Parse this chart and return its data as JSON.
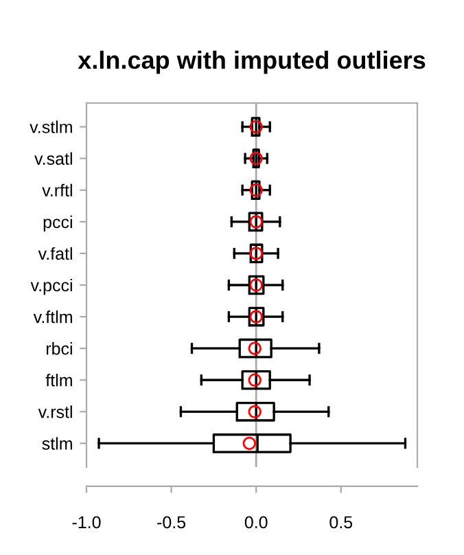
{
  "chart_data": {
    "type": "box",
    "orientation": "horizontal",
    "title": "x.ln.cap with imputed outliers",
    "categories": [
      "v.stlm",
      "v.satl",
      "v.rftl",
      "pcci",
      "v.fatl",
      "v.pcci",
      "v.ftlm",
      "rbci",
      "ftlm",
      "v.rstl",
      "stlm"
    ],
    "boxes": [
      {
        "low": -0.081,
        "q1": -0.024,
        "median": 0.0,
        "q3": 0.019,
        "high": 0.081,
        "mean": 0.0
      },
      {
        "low": -0.065,
        "q1": -0.016,
        "median": 0.0,
        "q3": 0.016,
        "high": 0.065,
        "mean": 0.0
      },
      {
        "low": -0.081,
        "q1": -0.024,
        "median": 0.0,
        "q3": 0.019,
        "high": 0.081,
        "mean": 0.0
      },
      {
        "low": -0.145,
        "q1": -0.04,
        "median": 0.0,
        "q3": 0.035,
        "high": 0.14,
        "mean": 0.0
      },
      {
        "low": -0.129,
        "q1": -0.032,
        "median": 0.0,
        "q3": 0.035,
        "high": 0.129,
        "mean": 0.0
      },
      {
        "low": -0.161,
        "q1": -0.04,
        "median": 0.0,
        "q3": 0.043,
        "high": 0.156,
        "mean": 0.0
      },
      {
        "low": -0.161,
        "q1": -0.04,
        "median": 0.0,
        "q3": 0.043,
        "high": 0.156,
        "mean": 0.0
      },
      {
        "low": -0.379,
        "q1": -0.097,
        "median": 0.0,
        "q3": 0.089,
        "high": 0.371,
        "mean": -0.008
      },
      {
        "low": -0.323,
        "q1": -0.081,
        "median": 0.0,
        "q3": 0.081,
        "high": 0.315,
        "mean": -0.008
      },
      {
        "low": -0.444,
        "q1": -0.113,
        "median": 0.0,
        "q3": 0.105,
        "high": 0.427,
        "mean": -0.008
      },
      {
        "low": -0.927,
        "q1": -0.25,
        "median": 0.008,
        "q3": 0.202,
        "high": 0.879,
        "mean": -0.04
      }
    ],
    "color": "#000000",
    "xlim": [
      -1.0,
      0.95
    ],
    "xticks": [
      {
        "value": -1.0,
        "label": "-1.0"
      },
      {
        "value": -0.5,
        "label": "-0.5"
      },
      {
        "value": 0.0,
        "label": "0.0"
      },
      {
        "value": 0.5,
        "label": "0.5"
      }
    ],
    "ref_lines": [
      {
        "axis": "x",
        "value": 0.0,
        "color": "#aaaaaa"
      }
    ],
    "grid": false,
    "legend": false
  }
}
